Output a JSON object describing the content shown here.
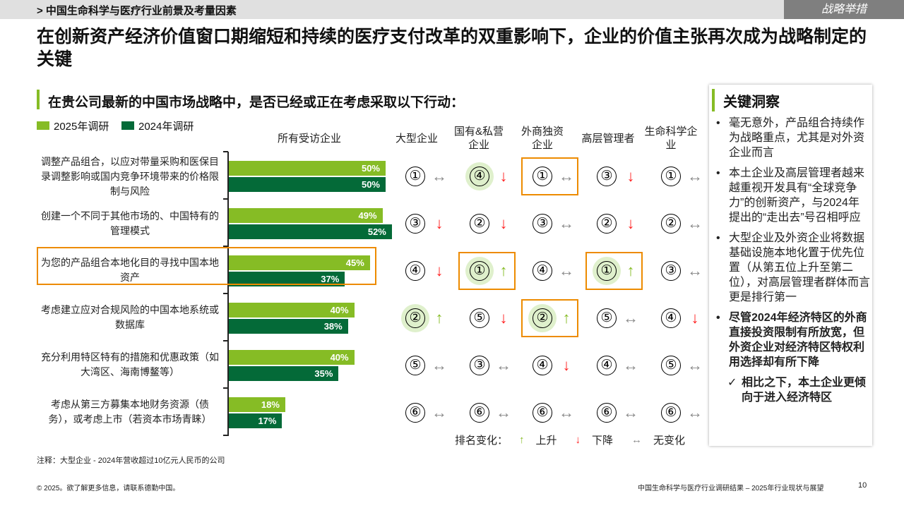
{
  "header": {
    "breadcrumb": "> 中国生命科学与医疗行业前景及考量因素",
    "section_tag": "战略举措"
  },
  "title": "在创新资产经济价值窗口期缩短和持续的医疗支付改革的双重影响下，企业的价值主张再次成为战略制定的关键",
  "question": "在贵公司最新的中国市场战略中，是否已经或正在考虑采取以下行动：",
  "legend": {
    "s2025": "2025年调研",
    "s2024": "2024年调研",
    "color2025": "#86bc25",
    "color2024": "#046a38"
  },
  "columns": {
    "all": "所有受访企业",
    "segments": [
      "大型企业",
      "国有&私营企业",
      "外商独资企业",
      "高层管理者",
      "生命科学企业"
    ]
  },
  "chart_data": {
    "type": "bar",
    "categories": [
      "调整产品组合，以应对带量采购和医保目录调整影响或国内竞争环境带来的价格限制与风险",
      "创建一个不同于其他市场的、中国特有的管理模式",
      "为您的产品组合本地化目的寻找中国本地资产",
      "考虑建立应对合规风险的中国本地系统或数据库",
      "充分利用特区特有的措施和优惠政策（如大湾区、海南博鳌等）",
      "考虑从第三方募集本地财务资源（债务），或考虑上市（若资本市场青睐）"
    ],
    "series": [
      {
        "name": "2025年调研",
        "values": [
          50,
          49,
          45,
          40,
          40,
          18
        ]
      },
      {
        "name": "2024年调研",
        "values": [
          50,
          52,
          37,
          38,
          35,
          17
        ]
      }
    ],
    "value_labels": {
      "2025": [
        "50%",
        "49%",
        "45%",
        "40%",
        "40%",
        "18%"
      ],
      "2024": [
        "50%",
        "52%",
        "37%",
        "38%",
        "35%",
        "17%"
      ]
    },
    "highlighted_row": 2
  },
  "ranks": [
    [
      {
        "r": "①",
        "c": "same"
      },
      {
        "r": "④",
        "c": "down",
        "hl": true
      },
      {
        "r": "①",
        "c": "same",
        "box": true
      },
      {
        "r": "③",
        "c": "down"
      },
      {
        "r": "①",
        "c": "same"
      }
    ],
    [
      {
        "r": "③",
        "c": "down"
      },
      {
        "r": "②",
        "c": "down"
      },
      {
        "r": "③",
        "c": "same"
      },
      {
        "r": "②",
        "c": "down"
      },
      {
        "r": "②",
        "c": "same"
      }
    ],
    [
      {
        "r": "④",
        "c": "down"
      },
      {
        "r": "①",
        "c": "up",
        "hl": true,
        "box": true
      },
      {
        "r": "④",
        "c": "same"
      },
      {
        "r": "①",
        "c": "up",
        "hl": true,
        "box": true
      },
      {
        "r": "③",
        "c": "same"
      }
    ],
    [
      {
        "r": "②",
        "c": "up",
        "hl": true
      },
      {
        "r": "⑤",
        "c": "down"
      },
      {
        "r": "②",
        "c": "up",
        "hl": true,
        "box": true
      },
      {
        "r": "⑤",
        "c": "same"
      },
      {
        "r": "④",
        "c": "down"
      }
    ],
    [
      {
        "r": "⑤",
        "c": "same"
      },
      {
        "r": "③",
        "c": "same"
      },
      {
        "r": "④",
        "c": "down"
      },
      {
        "r": "④",
        "c": "same"
      },
      {
        "r": "⑤",
        "c": "same"
      }
    ],
    [
      {
        "r": "⑥",
        "c": "same"
      },
      {
        "r": "⑥",
        "c": "same"
      },
      {
        "r": "⑥",
        "c": "same"
      },
      {
        "r": "⑥",
        "c": "same"
      },
      {
        "r": "⑥",
        "c": "same"
      }
    ]
  ],
  "arrows": {
    "up": "↑",
    "down": "↓",
    "same": "↔"
  },
  "rank_legend": {
    "label": "排名变化：",
    "up": "上升",
    "down": "下降",
    "same": "无变化"
  },
  "insights": {
    "title": "关键洞察",
    "items": [
      "毫无意外，产品组合持续作为战略重点，尤其是对外资企业而言",
      "本土企业及高层管理者越来越重视开发具有“全球竞争力”的创新资产，与2024年提出的“走出去”号召相呼应",
      "大型企业及外资企业将数据基础设施本地化置于优先位置（从第五位上升至第二位），对高层管理者群体而言更是排行第一",
      "尽管2024年经济特区的外商直接投资限制有所放宽，但外资企业对经济特区特权利用选择却有所下降"
    ],
    "sub": "相比之下，本土企业更倾向于进入经济特区"
  },
  "footer": {
    "note": "注释：大型企业 - 2024年营收超过10亿元人民币的公司",
    "copyright": "© 2025。欲了解更多信息，请联系德勤中国。",
    "report": "中国生命科学与医疗行业调研结果 – 2025年行业现状与展望",
    "page": "10"
  }
}
